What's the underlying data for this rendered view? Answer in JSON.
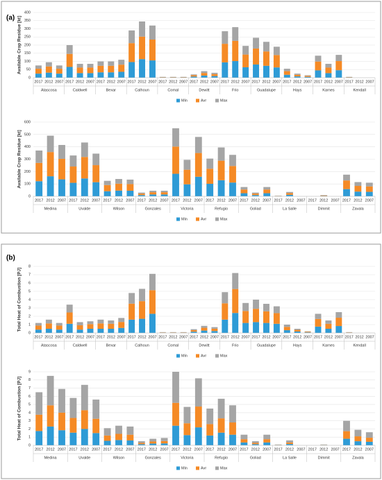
{
  "panels": [
    "(a)",
    "(b)"
  ],
  "chart_data": [
    {
      "type": "bar",
      "stacked": true,
      "ylabel": "Available Crop Residue [kt]",
      "groups": [
        "Atascosa",
        "Caldwell",
        "Bexar",
        "Calhoun",
        "Comal",
        "Dewitt",
        "Frio",
        "Guadalupe",
        "Hays",
        "Karnes",
        "Kendall"
      ],
      "categories": [
        "2017",
        "2012",
        "2007",
        "2017",
        "2012",
        "2007",
        "2017",
        "2012",
        "2007",
        "2017",
        "2012",
        "2007",
        "2017",
        "2012",
        "2007",
        "2017",
        "2012",
        "2007",
        "2017",
        "2012",
        "2007",
        "2017",
        "2012",
        "2007",
        "2017",
        "2012",
        "2007",
        "2017",
        "2012",
        "2007",
        "2017",
        "2012",
        "2007"
      ],
      "ylim": [
        0,
        400
      ],
      "yticks": [
        0,
        50,
        100,
        150,
        200,
        250,
        300,
        350,
        400
      ],
      "grid": true,
      "series": [
        {
          "name": "Min",
          "color": "#2e9bd6",
          "values": [
            25,
            31,
            25,
            66,
            28,
            28,
            33,
            33,
            36,
            96,
            114,
            106,
            2,
            2,
            2,
            7,
            13,
            10,
            94,
            102,
            64,
            81,
            73,
            63,
            18,
            8,
            5,
            45,
            28,
            46,
            2,
            0,
            0
          ]
        },
        {
          "name": "Avr",
          "color": "#f58a25",
          "values": [
            30,
            38,
            30,
            80,
            34,
            34,
            40,
            40,
            44,
            116,
            138,
            128,
            2,
            2,
            2,
            8,
            16,
            12,
            114,
            124,
            78,
            98,
            88,
            76,
            22,
            10,
            6,
            54,
            34,
            56,
            2,
            0,
            0
          ]
        },
        {
          "name": "Max",
          "color": "#a5a5a5",
          "values": [
            20,
            26,
            20,
            54,
            23,
            23,
            27,
            27,
            30,
            78,
            93,
            86,
            1,
            1,
            1,
            5,
            11,
            8,
            77,
            84,
            53,
            66,
            59,
            51,
            15,
            7,
            4,
            36,
            23,
            38,
            1,
            0,
            0
          ]
        }
      ]
    },
    {
      "type": "bar",
      "stacked": true,
      "ylabel": "Available Crop Residue [kt]",
      "groups": [
        "Medina",
        "Uvalde",
        "Wilson",
        "Gonzales",
        "Victoria",
        "Refugio",
        "Goliad",
        "La Salle",
        "Dimmit",
        "Zavala"
      ],
      "categories": [
        "2017",
        "2012",
        "2007",
        "2017",
        "2012",
        "2007",
        "2017",
        "2012",
        "2007",
        "2017",
        "2012",
        "2007",
        "2017",
        "2012",
        "2007",
        "2017",
        "2012",
        "2007",
        "2017",
        "2012",
        "2007",
        "2017",
        "2012",
        "2007",
        "2017",
        "2012",
        "2007",
        "2017",
        "2012",
        "2007"
      ],
      "ylim": [
        0,
        600
      ],
      "yticks": [
        0,
        100,
        200,
        300,
        400,
        500,
        600
      ],
      "grid": true,
      "series": [
        {
          "name": "Min",
          "color": "#2e9bd6",
          "values": [
            122,
            162,
            137,
            109,
            144,
            114,
            41,
            46,
            45,
            10,
            15,
            15,
            182,
            97,
            158,
            101,
            130,
            111,
            25,
            10,
            25,
            2,
            12,
            0,
            0,
            3,
            0,
            58,
            38,
            36
          ]
        },
        {
          "name": "Avr",
          "color": "#f58a25",
          "values": [
            148,
            196,
            166,
            132,
            174,
            138,
            50,
            56,
            54,
            12,
            18,
            18,
            220,
            118,
            192,
            122,
            158,
            134,
            30,
            12,
            30,
            2,
            14,
            0,
            0,
            4,
            0,
            70,
            46,
            44
          ]
        },
        {
          "name": "Max",
          "color": "#a5a5a5",
          "values": [
            100,
            132,
            112,
            89,
            117,
            93,
            34,
            38,
            36,
            8,
            12,
            12,
            148,
            80,
            130,
            82,
            107,
            90,
            20,
            8,
            20,
            1,
            9,
            0,
            0,
            3,
            0,
            47,
            31,
            30
          ]
        }
      ]
    },
    {
      "type": "bar",
      "stacked": true,
      "ylabel": "Total Heat of Combustion [PJ]",
      "groups": [
        "Atascosa",
        "Caldwell",
        "Bexar",
        "Calhoun",
        "Comal",
        "Dewitt",
        "Frio",
        "Guadalupe",
        "Hays",
        "Karnes",
        "Kendall"
      ],
      "categories": [
        "2017",
        "2012",
        "2007",
        "2017",
        "2012",
        "2007",
        "2017",
        "2012",
        "2007",
        "2017",
        "2012",
        "2007",
        "2017",
        "2012",
        "2007",
        "2017",
        "2012",
        "2007",
        "2017",
        "2012",
        "2007",
        "2017",
        "2012",
        "2007",
        "2017",
        "2012",
        "2007",
        "2017",
        "2012",
        "2007",
        "2017",
        "2012",
        "2007"
      ],
      "ylim": [
        0,
        8
      ],
      "yticks": [
        0,
        1,
        2,
        3,
        4,
        5,
        6,
        7,
        8
      ],
      "grid": true,
      "series": [
        {
          "name": "Min",
          "color": "#2e9bd6",
          "values": [
            0.4,
            0.5,
            0.4,
            1.1,
            0.4,
            0.5,
            0.5,
            0.5,
            0.6,
            1.6,
            1.7,
            2.3,
            0.03,
            0.03,
            0.03,
            0.15,
            0.28,
            0.23,
            1.6,
            2.4,
            1.2,
            1.3,
            1.2,
            1.1,
            0.33,
            0.17,
            0.07,
            0.76,
            0.5,
            0.83,
            0.03,
            0,
            0
          ]
        },
        {
          "name": "Avr",
          "color": "#f58a25",
          "values": [
            0.48,
            0.64,
            0.48,
            1.36,
            0.52,
            0.56,
            0.64,
            0.6,
            0.72,
            1.92,
            2.12,
            2.84,
            0.04,
            0.04,
            0.04,
            0.18,
            0.34,
            0.28,
            1.96,
            2.88,
            1.44,
            1.6,
            1.4,
            1.28,
            0.4,
            0.2,
            0.08,
            0.92,
            0.6,
            1.0,
            0.04,
            0,
            0
          ]
        },
        {
          "name": "Max",
          "color": "#a5a5a5",
          "values": [
            0.32,
            0.46,
            0.32,
            0.94,
            0.38,
            0.34,
            0.46,
            0.4,
            0.48,
            1.28,
            1.48,
            1.96,
            0.03,
            0.03,
            0.03,
            0.12,
            0.23,
            0.19,
            1.34,
            1.92,
            0.96,
            1.1,
            0.9,
            0.82,
            0.27,
            0.13,
            0.05,
            0.62,
            0.4,
            0.67,
            0.03,
            0,
            0
          ]
        }
      ]
    },
    {
      "type": "bar",
      "stacked": true,
      "ylabel": "Total Heat of Combustion [PJ]",
      "groups": [
        "Medina",
        "Uvalde",
        "Wilson",
        "Gonzales",
        "Victoria",
        "Refugio",
        "Goliad",
        "La Salle",
        "Dimmit",
        "Zavala"
      ],
      "categories": [
        "2017",
        "2012",
        "2007",
        "2017",
        "2012",
        "2007",
        "2017",
        "2012",
        "2007",
        "2017",
        "2012",
        "2007",
        "2017",
        "2012",
        "2007",
        "2017",
        "2012",
        "2007",
        "2017",
        "2012",
        "2007",
        "2017",
        "2012",
        "2007",
        "2017",
        "2012",
        "2007",
        "2017",
        "2012",
        "2007"
      ],
      "ylim": [
        0,
        9
      ],
      "yticks": [
        0,
        1,
        2,
        3,
        4,
        5,
        6,
        7,
        8,
        9
      ],
      "grid": true,
      "series": [
        {
          "name": "Min",
          "color": "#2e9bd6",
          "values": [
            1.75,
            2.3,
            1.85,
            1.55,
            2.0,
            1.5,
            0.55,
            0.65,
            0.6,
            0.14,
            0.22,
            0.24,
            2.4,
            1.25,
            2.2,
            1.2,
            1.55,
            1.3,
            0.35,
            0.14,
            0.35,
            0.03,
            0.16,
            0,
            0,
            0.03,
            0,
            0.8,
            0.5,
            0.43
          ]
        },
        {
          "name": "Avr",
          "color": "#f58a25",
          "values": [
            2.0,
            2.6,
            2.15,
            1.8,
            2.3,
            1.75,
            0.65,
            0.75,
            0.7,
            0.16,
            0.25,
            0.28,
            2.8,
            1.45,
            2.55,
            1.4,
            1.75,
            1.5,
            0.4,
            0.16,
            0.4,
            0.03,
            0.19,
            0,
            0,
            0.03,
            0,
            0.93,
            0.6,
            0.5
          ]
        },
        {
          "name": "Max",
          "color": "#a5a5a5",
          "values": [
            2.75,
            3.6,
            2.9,
            2.45,
            3.1,
            2.35,
            0.9,
            1.0,
            1.0,
            0.2,
            0.33,
            0.38,
            3.8,
            2.0,
            3.45,
            1.9,
            2.4,
            2.1,
            0.55,
            0.2,
            0.55,
            0.04,
            0.25,
            0,
            0,
            0.04,
            0,
            1.27,
            0.8,
            0.67
          ]
        }
      ]
    }
  ]
}
